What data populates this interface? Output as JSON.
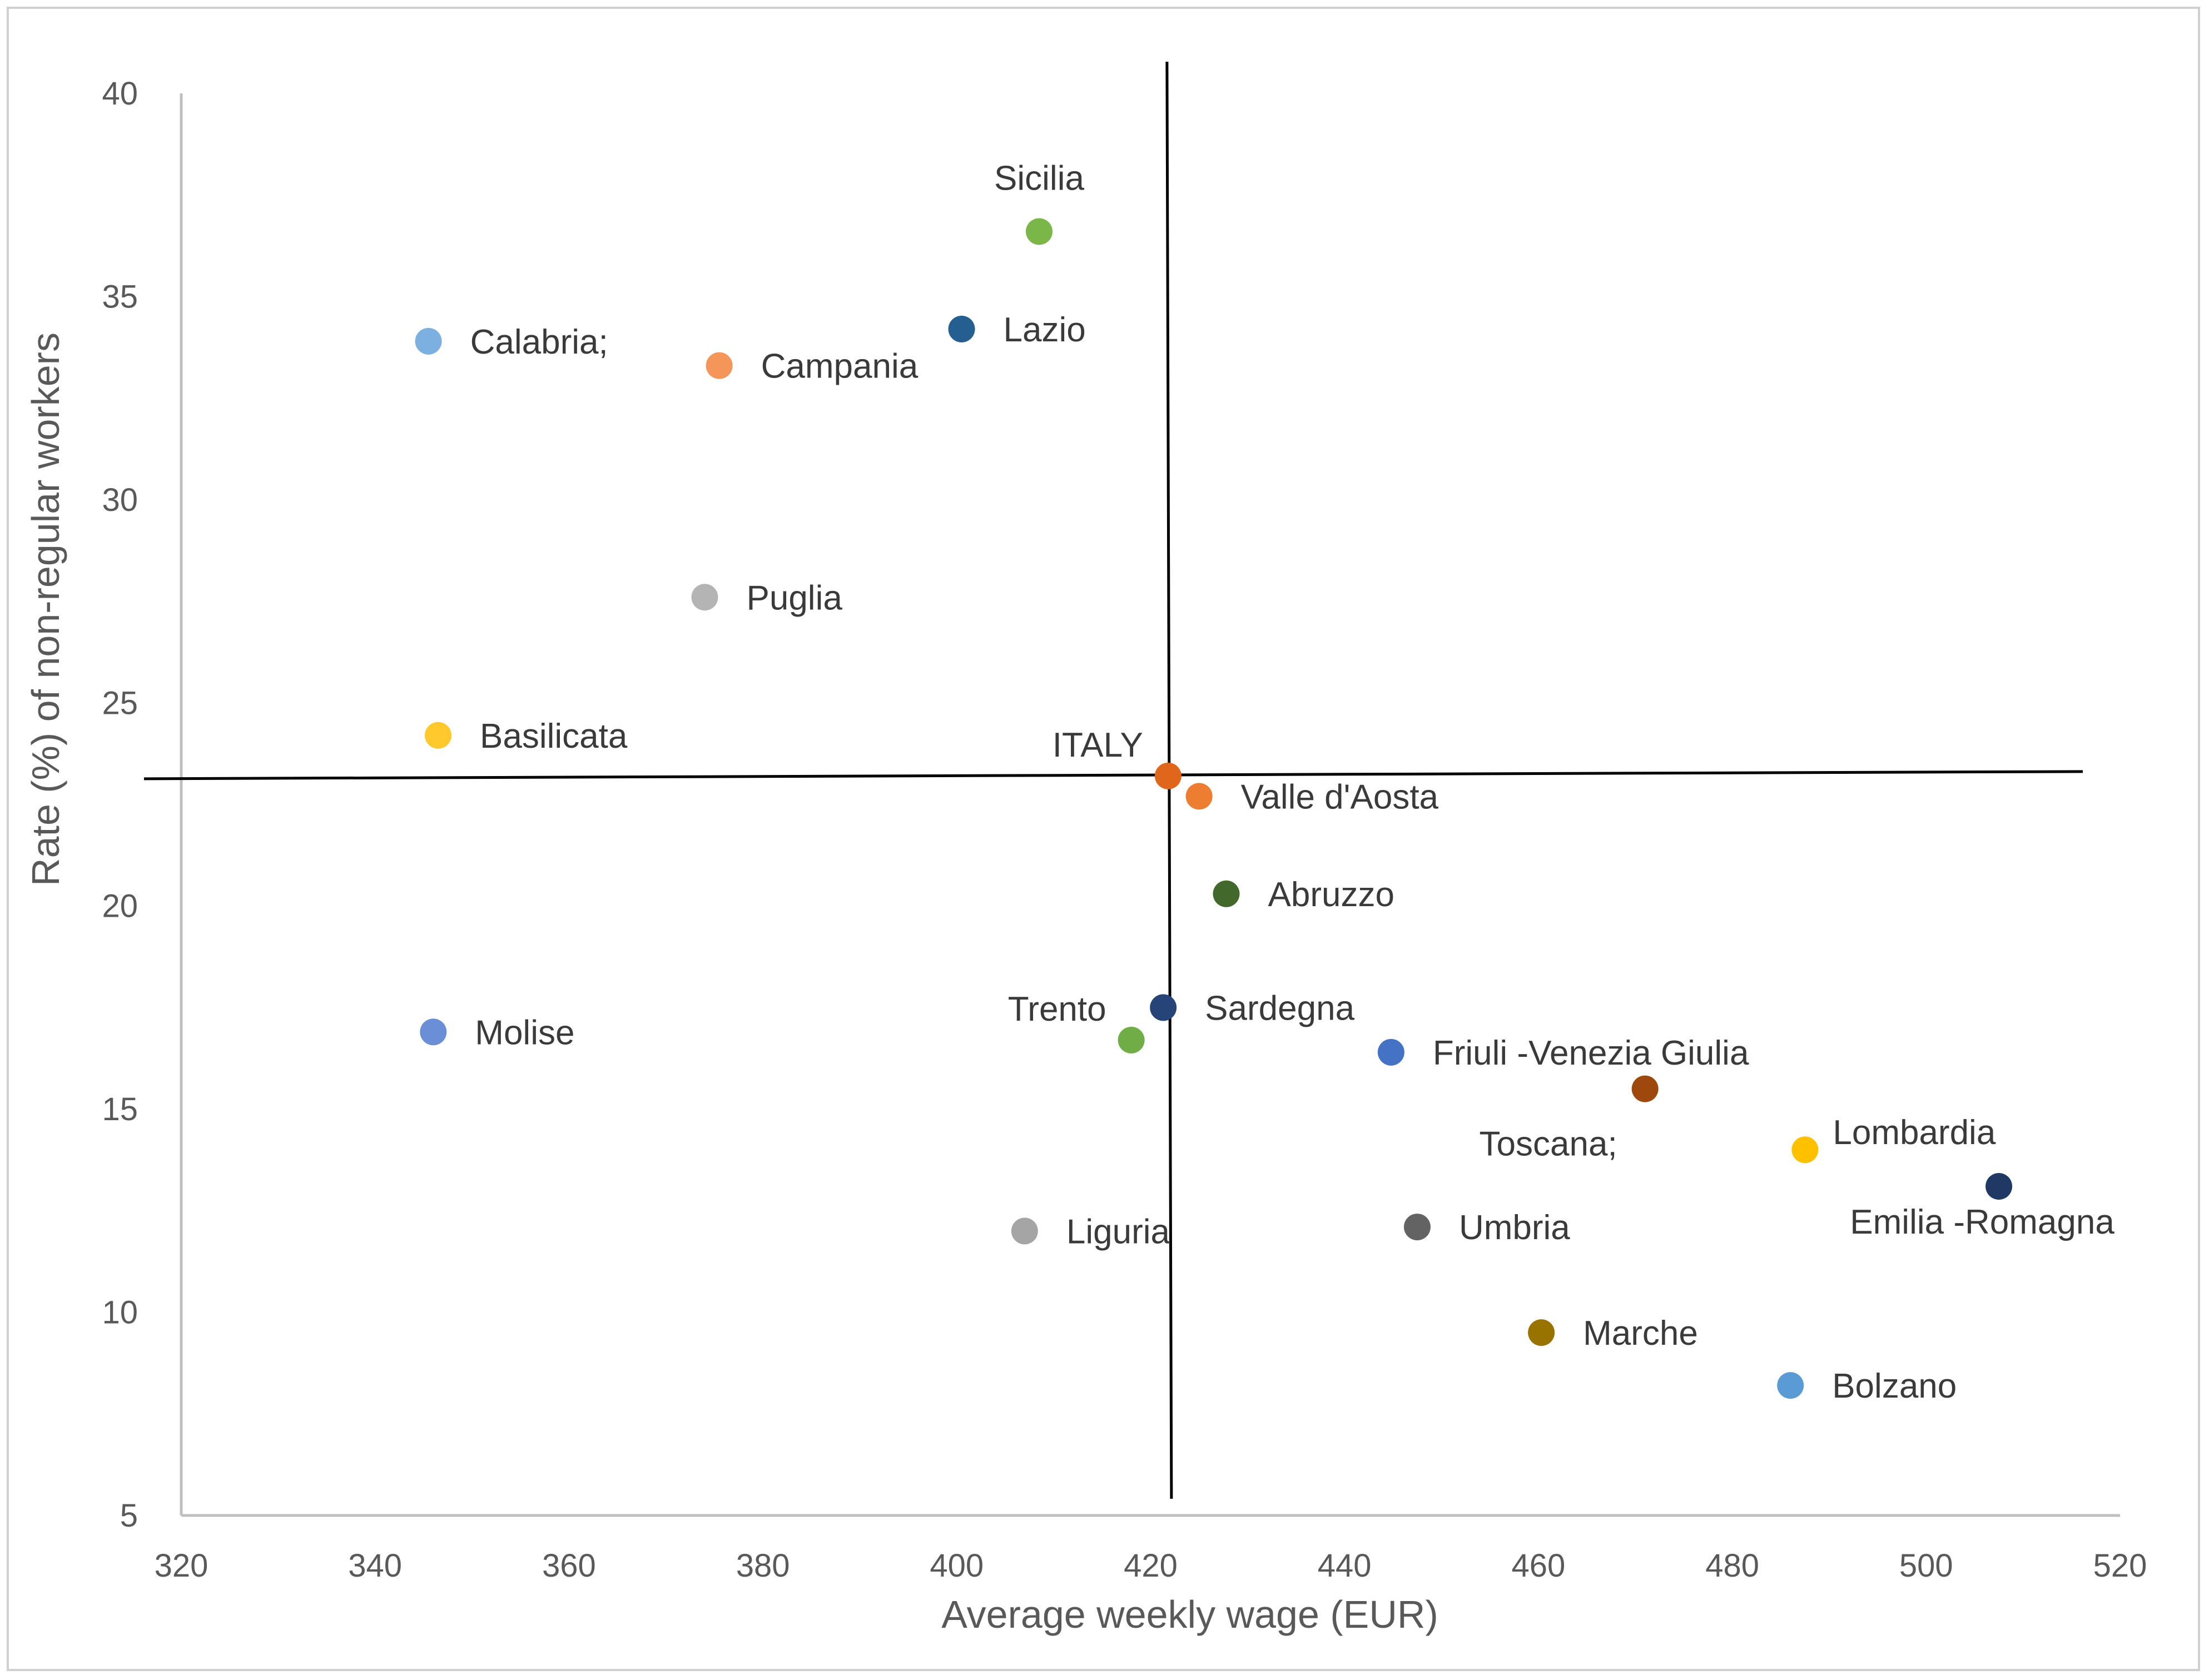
{
  "chart_data": {
    "type": "scatter",
    "title": "",
    "xlabel": "Average weekly wage (EUR)",
    "ylabel": "Rate (%) of non-regular workers",
    "xlim": [
      320,
      520
    ],
    "ylim": [
      5,
      40
    ],
    "x_ticks": [
      320,
      340,
      360,
      380,
      400,
      420,
      440,
      460,
      480,
      500,
      520
    ],
    "y_ticks": [
      5,
      10,
      15,
      20,
      25,
      30,
      35,
      40
    ],
    "grid": false,
    "legend": "none",
    "reference_lines": {
      "vertical_x": 421.8,
      "horizontal_y": 23.2
    },
    "points": [
      {
        "label": "Sicilia",
        "x": 408.5,
        "y": 36.6,
        "color": "#7ab648",
        "label_pos": "above"
      },
      {
        "label": "Lazio",
        "x": 400.5,
        "y": 34.2,
        "color": "#255e91",
        "label_pos": "right"
      },
      {
        "label": "Calabria;",
        "x": 345.5,
        "y": 33.9,
        "color": "#7cb0e0",
        "label_pos": "right"
      },
      {
        "label": "Campania",
        "x": 375.5,
        "y": 33.3,
        "color": "#f4955a",
        "label_pos": "right"
      },
      {
        "label": "Puglia",
        "x": 374.0,
        "y": 27.6,
        "color": "#b4b4b4",
        "label_pos": "right"
      },
      {
        "label": "Basilicata",
        "x": 346.5,
        "y": 24.2,
        "color": "#ffc82c",
        "label_pos": "right"
      },
      {
        "label": "ITALY",
        "x": 421.8,
        "y": 23.2,
        "color": "#e0661c",
        "label_pos": "above-left"
      },
      {
        "label": "Valle d'Aosta",
        "x": 425.0,
        "y": 22.7,
        "color": "#ed7d31",
        "label_pos": "right"
      },
      {
        "label": "Abruzzo",
        "x": 427.8,
        "y": 20.3,
        "color": "#43682b",
        "label_pos": "right"
      },
      {
        "label": "Sardegna",
        "x": 421.3,
        "y": 17.5,
        "color": "#264478",
        "label_pos": "right"
      },
      {
        "label": "Trento",
        "x": 418.0,
        "y": 16.7,
        "color": "#70ad47",
        "label_pos": "above-left"
      },
      {
        "label": "Molise",
        "x": 346.0,
        "y": 16.9,
        "color": "#6a8fd6",
        "label_pos": "right"
      },
      {
        "label": "Friuli -Venezia Giulia",
        "x": 444.8,
        "y": 16.4,
        "color": "#4472c4",
        "label_pos": "right"
      },
      {
        "label": "Toscana;",
        "x": 471.0,
        "y": 15.5,
        "color": "#9e480e",
        "label_pos": "below-left"
      },
      {
        "label": "Lombardia",
        "x": 487.5,
        "y": 14.0,
        "color": "#ffc000",
        "label_pos": "above-right"
      },
      {
        "label": "Emilia -Romagna",
        "x": 507.5,
        "y": 13.1,
        "color": "#1f3864",
        "label_pos": "below"
      },
      {
        "label": "Liguria",
        "x": 407.0,
        "y": 12.0,
        "color": "#a5a5a5",
        "label_pos": "right"
      },
      {
        "label": "Umbria",
        "x": 447.5,
        "y": 12.1,
        "color": "#636363",
        "label_pos": "right"
      },
      {
        "label": "Marche",
        "x": 460.3,
        "y": 9.5,
        "color": "#997300",
        "label_pos": "right"
      },
      {
        "label": "Bolzano",
        "x": 486.0,
        "y": 8.2,
        "color": "#5b9bd5",
        "label_pos": "right"
      }
    ]
  }
}
